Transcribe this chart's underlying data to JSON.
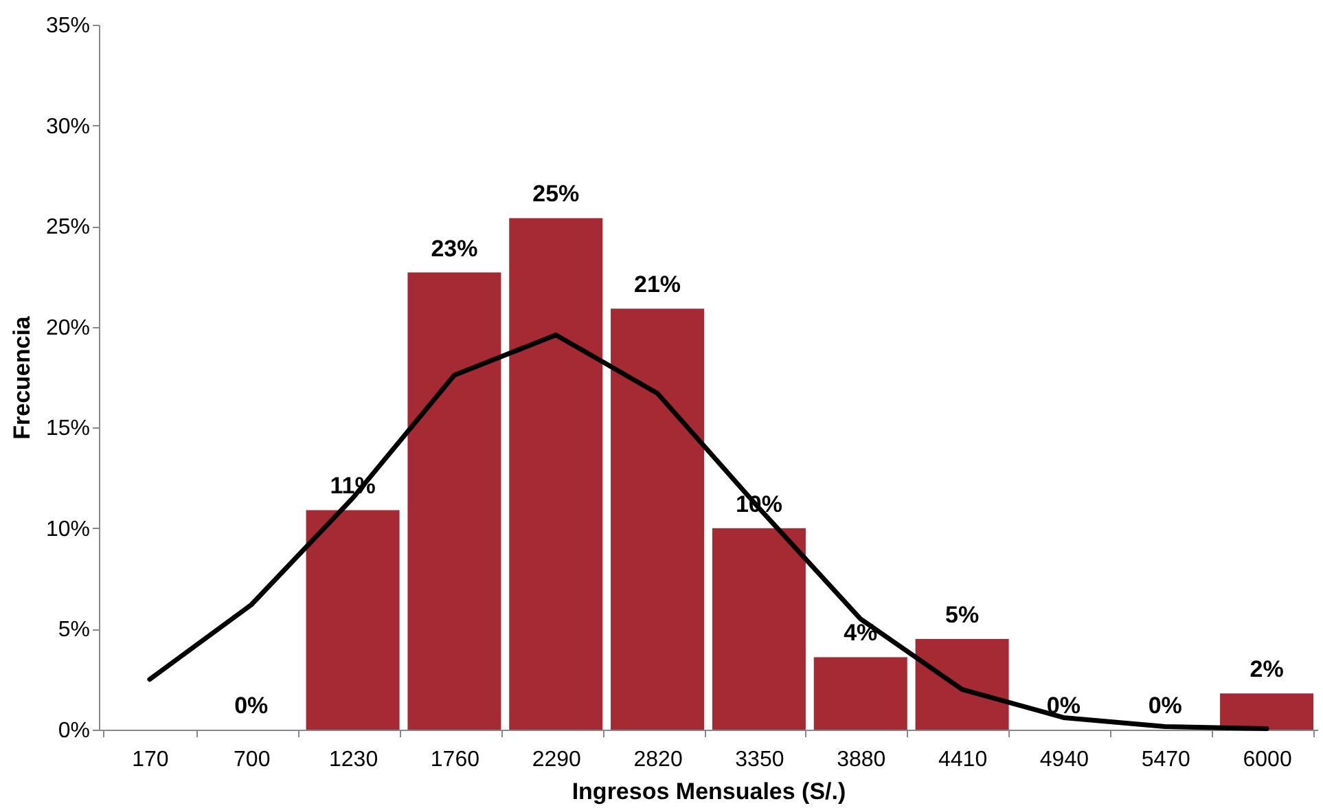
{
  "chart_data": {
    "type": "bar",
    "xlabel": "Ingresos Mensuales (S/.)",
    "ylabel": "Frecuencia",
    "categories": [
      "170",
      "700",
      "1230",
      "1760",
      "2290",
      "2820",
      "3350",
      "3880",
      "4410",
      "4940",
      "5470",
      "6000"
    ],
    "series": [
      {
        "color": "#a52a34",
        "values": [
          0,
          0,
          10.9,
          22.7,
          25.4,
          20.9,
          10,
          3.6,
          4.5,
          0,
          0,
          1.8
        ],
        "value_labels": [
          null,
          "0%",
          "11%",
          "23%",
          "25%",
          "21%",
          "10%",
          "4%",
          "5%",
          "0%",
          "0%",
          "2%"
        ]
      },
      {
        "type": "line",
        "color": "#000000",
        "values": [
          2.5,
          6.2,
          11.5,
          17.6,
          19.6,
          16.7,
          11,
          5.5,
          2,
          0.6,
          0.15,
          0.05
        ]
      }
    ],
    "ylim": [
      0,
      35
    ],
    "yticks": [
      {
        "value": 0,
        "label": "0%"
      },
      {
        "value": 5,
        "label": "5%"
      },
      {
        "value": 10,
        "label": "10%"
      },
      {
        "value": 15,
        "label": "15%"
      },
      {
        "value": 20,
        "label": "20%"
      },
      {
        "value": 25,
        "label": "25%"
      },
      {
        "value": 30,
        "label": "30%"
      },
      {
        "value": 35,
        "label": "35%"
      }
    ],
    "grid": false,
    "marker": "none",
    "line_style": "solid"
  }
}
